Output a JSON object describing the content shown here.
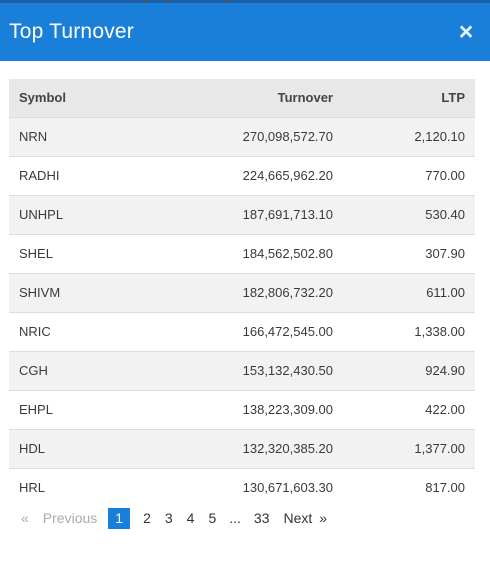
{
  "modal": {
    "title": "Top Turnover",
    "close_icon": "×"
  },
  "table": {
    "headers": {
      "symbol": "Symbol",
      "turnover": "Turnover",
      "ltp": "LTP"
    },
    "rows": [
      {
        "symbol": "NRN",
        "turnover": "270,098,572.70",
        "ltp": "2,120.10"
      },
      {
        "symbol": "RADHI",
        "turnover": "224,665,962.20",
        "ltp": "770.00"
      },
      {
        "symbol": "UNHPL",
        "turnover": "187,691,713.10",
        "ltp": "530.40"
      },
      {
        "symbol": "SHEL",
        "turnover": "184,562,502.80",
        "ltp": "307.90"
      },
      {
        "symbol": "SHIVM",
        "turnover": "182,806,732.20",
        "ltp": "611.00"
      },
      {
        "symbol": "NRIC",
        "turnover": "166,472,545.00",
        "ltp": "1,338.00"
      },
      {
        "symbol": "CGH",
        "turnover": "153,132,430.50",
        "ltp": "924.90"
      },
      {
        "symbol": "EHPL",
        "turnover": "138,223,309.00",
        "ltp": "422.00"
      },
      {
        "symbol": "HDL",
        "turnover": "132,320,385.20",
        "ltp": "1,377.00"
      },
      {
        "symbol": "HRL",
        "turnover": "130,671,603.30",
        "ltp": "817.00"
      }
    ]
  },
  "pagination": {
    "prev_arrow": "«",
    "prev_label": "Previous",
    "pages": [
      "1",
      "2",
      "3",
      "4",
      "5"
    ],
    "current_page": "1",
    "ellipsis": "...",
    "last_page": "33",
    "next_label": "Next",
    "next_arrow": "»"
  },
  "colors": {
    "header_bg": "#1a7fd8",
    "active_page_bg": "#1a7fd8"
  }
}
